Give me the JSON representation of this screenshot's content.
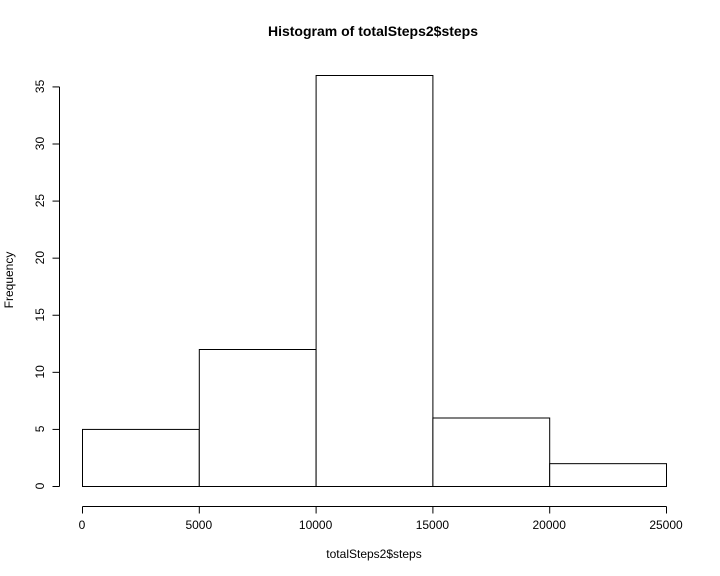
{
  "chart_data": {
    "type": "bar",
    "title": "Histogram of totalSteps2$steps",
    "xlabel": "totalSteps2$steps",
    "ylabel": "Frequency",
    "bins": [
      {
        "start": 0,
        "end": 5000,
        "count": 5
      },
      {
        "start": 5000,
        "end": 10000,
        "count": 12
      },
      {
        "start": 10000,
        "end": 15000,
        "count": 36
      },
      {
        "start": 15000,
        "end": 20000,
        "count": 6
      },
      {
        "start": 20000,
        "end": 25000,
        "count": 2
      }
    ],
    "x_ticks": [
      0,
      5000,
      10000,
      15000,
      20000,
      25000
    ],
    "y_ticks": [
      0,
      5,
      10,
      15,
      20,
      25,
      30,
      35
    ],
    "xlim": [
      0,
      25000
    ],
    "ylim": [
      0,
      36
    ],
    "grid": false,
    "bar_fill": "#ffffff",
    "bar_stroke": "#000000"
  }
}
